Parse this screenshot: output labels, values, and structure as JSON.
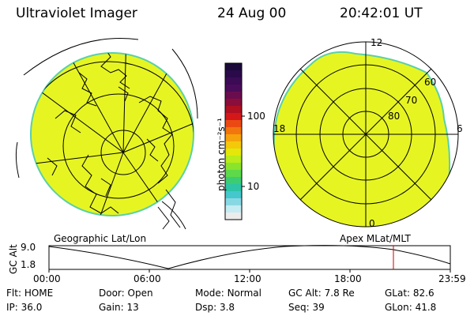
{
  "header": {
    "title": "Ultraviolet Imager",
    "date": "24 Aug 00",
    "time": "20:42:01 UT"
  },
  "colors": {
    "image_fill": "#e6f522",
    "image_edge": "#5ad0a8",
    "highlight": "#cc0000"
  },
  "colorbar": {
    "unit_label": "photon cm⁻²s⁻¹",
    "tick_labels": [
      "100",
      "10"
    ],
    "colors": [
      "#1a0a3a",
      "#2a0a4a",
      "#3b0b55",
      "#4a0c5a",
      "#6a0d4e",
      "#8b0d3a",
      "#b01022",
      "#d4181a",
      "#ea4a12",
      "#f2760e",
      "#f6a20c",
      "#f3c90a",
      "#e4e80a",
      "#b9ec1a",
      "#8ae42c",
      "#5ed94a",
      "#3ccd72",
      "#2ec4a6",
      "#44c8cc",
      "#88d8e4",
      "#c4ecf2",
      "#ececec"
    ]
  },
  "map_left": {
    "label": "Geographic Lat/Lon"
  },
  "map_right": {
    "label": "Apex MLat/MLT",
    "mlt_labels": {
      "top": "12",
      "left": "18",
      "right": "6",
      "bottom": "0"
    },
    "lat_labels": [
      "60",
      "70",
      "80"
    ]
  },
  "altitude_plot": {
    "y_label": "GC Alt",
    "y_ticks": [
      "9.0",
      "1.8"
    ],
    "x_ticks": [
      "00:00",
      "06:00",
      "12:00",
      "18:00",
      "23:59"
    ]
  },
  "status": {
    "row1": [
      {
        "label": "Flt:",
        "value": "HOME"
      },
      {
        "label": "Door:",
        "value": "Open"
      },
      {
        "label": "Mode:",
        "value": "Normal"
      },
      {
        "label": "GC Alt:",
        "value": "7.8 Re"
      },
      {
        "label": "GLat:",
        "value": "82.6"
      }
    ],
    "row2": [
      {
        "label": "IP:",
        "value": "36.0"
      },
      {
        "label": "Gain:",
        "value": "13"
      },
      {
        "label": "Dsp:",
        "value": "3.8"
      },
      {
        "label": "Seq:",
        "value": "39"
      },
      {
        "label": "GLon:",
        "value": "41.8"
      }
    ]
  }
}
